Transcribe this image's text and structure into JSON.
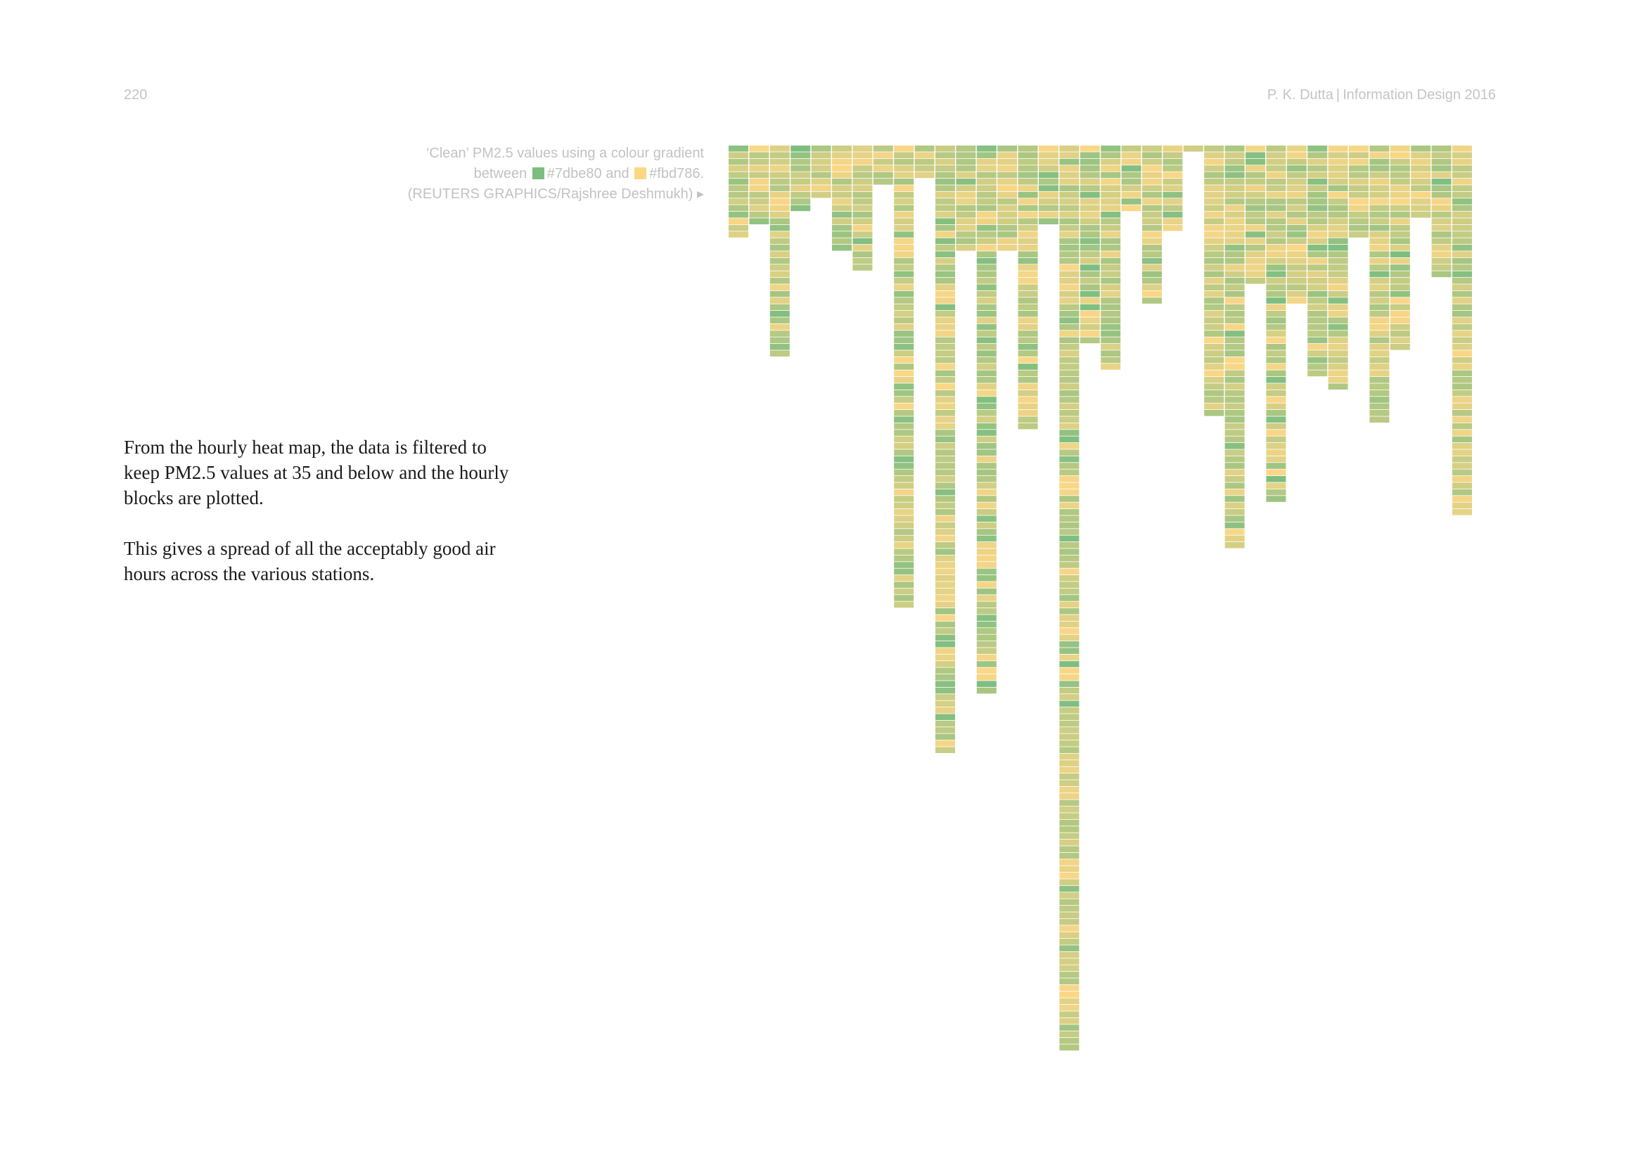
{
  "header": {
    "page_number": "220",
    "author": "P. K. Dutta",
    "separator": "|",
    "publication": "Information Design 2016"
  },
  "caption": {
    "line1": "‘Clean’ PM2.5 values using a colour gradient",
    "between_word": "between",
    "color_green": "#7dbe80",
    "and_word": "and",
    "color_yellow": "#fbd786",
    "line3": "(REUTERS GRAPHICS/Rajshree Deshmukh) ▸"
  },
  "body": {
    "paragraph1": "From the hourly heat map, the data is filtered to keep PM2.5 values at 35 and below and the hourly blocks are plotted.",
    "paragraph2": "This gives a spread of all the acceptably good air hours across the various stations."
  },
  "chart_data": {
    "type": "heatmap",
    "description_units": "hourly blocks with PM2.5 at or below 35 per station",
    "value_threshold": 35,
    "gradient": [
      "#7dbe80",
      "#fbd786"
    ],
    "stations_hour_counts": [
      14,
      12,
      32,
      10,
      8,
      16,
      19,
      6,
      70,
      5,
      92,
      16,
      83,
      16,
      43,
      12,
      137,
      30,
      34,
      10,
      24,
      13,
      1,
      41,
      61,
      21,
      54,
      24,
      35,
      37,
      14,
      42,
      31,
      11,
      20,
      56
    ]
  }
}
